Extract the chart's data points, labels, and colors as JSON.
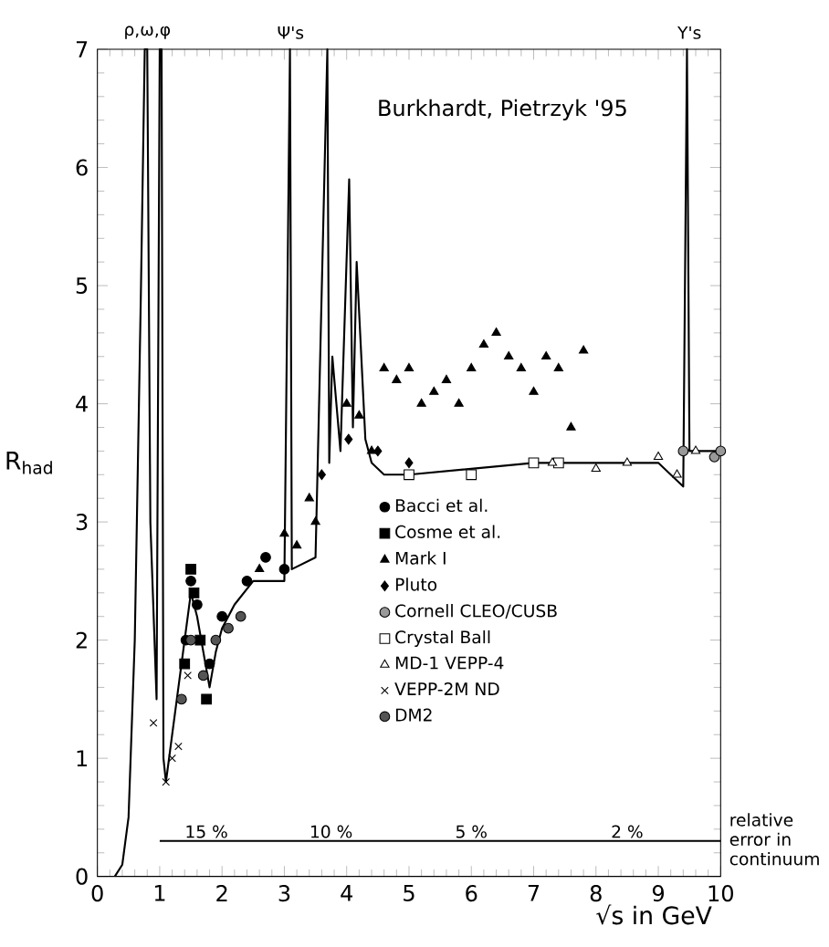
{
  "chart_data": {
    "type": "line",
    "title": "Burkhardt, Pietrzyk '95",
    "xlabel": "√s in GeV",
    "ylabel": "R$_{had}$",
    "xlim": [
      0,
      10
    ],
    "ylim": [
      0,
      7
    ],
    "xticks": [
      0,
      1,
      2,
      3,
      4,
      5,
      6,
      7,
      8,
      9,
      10
    ],
    "yticks": [
      0,
      1,
      2,
      3,
      4,
      5,
      6,
      7
    ],
    "grid": false,
    "legend": "center",
    "line_style": "solid",
    "annotations": [
      {
        "text": "ρ,ω,φ",
        "x": 0.8,
        "y": 7
      },
      {
        "text": "Ψ's",
        "x": 3.1,
        "y": 7
      },
      {
        "text": "Υ's",
        "x": 9.5,
        "y": 7
      },
      {
        "text": "15 %",
        "x": 1.75,
        "y": 0.3
      },
      {
        "text": "10 %",
        "x": 3.75,
        "y": 0.3
      },
      {
        "text": "5 %",
        "x": 6,
        "y": 0.3
      },
      {
        "text": "2 %",
        "x": 8.5,
        "y": 0.3
      },
      "relative error in continuum"
    ],
    "series": [
      {
        "color": "#000000",
        "marker": "none",
        "x": [
          0.28,
          0.4,
          0.5,
          0.6,
          0.7,
          0.76,
          0.8,
          0.85,
          0.95,
          1.0,
          1.03,
          1.06,
          1.1,
          1.2,
          1.4,
          1.5,
          1.6,
          1.8,
          1.9,
          2.0,
          2.2,
          2.5,
          3.0,
          3.09,
          3.12,
          3.5,
          3.69,
          3.72,
          3.77,
          3.9,
          4.04,
          4.1,
          4.16,
          4.3,
          4.4,
          4.6,
          5,
          6,
          7,
          8,
          9,
          9.4,
          9.46,
          9.5,
          10
        ],
        "values": [
          0,
          0.1,
          0.5,
          2,
          5,
          7,
          7,
          3,
          1.5,
          7,
          7,
          1.0,
          0.8,
          1.2,
          2.0,
          2.4,
          2.2,
          1.6,
          1.9,
          2.1,
          2.3,
          2.5,
          2.5,
          7,
          2.6,
          2.7,
          7,
          3.5,
          4.4,
          3.6,
          5.9,
          3.8,
          5.2,
          3.7,
          3.5,
          3.4,
          3.4,
          3.45,
          3.5,
          3.5,
          3.5,
          3.3,
          7,
          3.6,
          3.6
        ]
      },
      {
        "color": "#000000",
        "marker": "none",
        "x": [
          1,
          2.5,
          5,
          7,
          10
        ],
        "values": [
          0.3,
          0.3,
          0.3,
          0.3,
          0.3
        ]
      },
      {
        "type": "scatter",
        "name": "Bacci et al.",
        "color": "#000000",
        "marker": "circle",
        "x": [
          1.42,
          1.5,
          1.6,
          1.8,
          2.0,
          2.4,
          2.7,
          3.0
        ],
        "values": [
          2.0,
          2.5,
          2.3,
          1.8,
          2.2,
          2.5,
          2.7,
          2.6
        ]
      },
      {
        "type": "scatter",
        "name": "Cosme et al.",
        "color": "#000000",
        "marker": "square",
        "x": [
          1.4,
          1.5,
          1.55,
          1.65,
          1.75
        ],
        "values": [
          1.8,
          2.6,
          2.4,
          2.0,
          1.5
        ]
      },
      {
        "type": "scatter",
        "name": "Mark I",
        "color": "#000000",
        "marker": "triangle",
        "x": [
          2.6,
          3.0,
          3.2,
          3.4,
          3.5,
          4.0,
          4.2,
          4.4,
          4.6,
          4.8,
          5.0,
          5.2,
          5.4,
          5.6,
          5.8,
          6.0,
          6.2,
          6.4,
          6.6,
          6.8,
          7.0,
          7.2,
          7.4,
          7.6,
          7.8
        ],
        "values": [
          2.6,
          2.9,
          2.8,
          3.2,
          3.0,
          4.0,
          3.9,
          3.6,
          4.3,
          4.2,
          4.3,
          4.0,
          4.1,
          4.2,
          4.0,
          4.3,
          4.5,
          4.6,
          4.4,
          4.3,
          4.1,
          4.4,
          4.3,
          3.8,
          4.45
        ]
      },
      {
        "type": "scatter",
        "name": "Pluto",
        "color": "#000000",
        "marker": "diamond",
        "x": [
          3.6,
          4.03,
          4.5,
          5.0
        ],
        "values": [
          3.4,
          3.7,
          3.6,
          3.5
        ]
      },
      {
        "type": "scatter",
        "name": "Cornell CLEO/CUSB",
        "color": "#999999",
        "marker": "circle",
        "x": [
          9.4,
          9.9,
          10.0
        ],
        "values": [
          3.6,
          3.55,
          3.6
        ]
      },
      {
        "type": "scatter",
        "name": "Crystal Ball",
        "color": "#ffffff",
        "marker": "square",
        "x": [
          5.0,
          6.0,
          7.0,
          7.4
        ],
        "values": [
          3.4,
          3.4,
          3.5,
          3.5
        ]
      },
      {
        "type": "scatter",
        "name": "MD-1 VEPP-4",
        "color": "#ffffff",
        "marker": "triangle",
        "x": [
          7.3,
          8.0,
          8.5,
          9.0,
          9.3,
          9.6
        ],
        "values": [
          3.5,
          3.45,
          3.5,
          3.55,
          3.4,
          3.6
        ]
      },
      {
        "type": "scatter",
        "name": "VEPP-2M ND",
        "color": "#000000",
        "marker": "cross",
        "x": [
          0.9,
          1.1,
          1.2,
          1.3,
          1.45
        ],
        "values": [
          1.3,
          0.8,
          1.0,
          1.1,
          1.7
        ]
      },
      {
        "type": "scatter",
        "name": "DM2",
        "color": "#555555",
        "marker": "circle",
        "x": [
          1.35,
          1.5,
          1.7,
          1.9,
          2.1,
          2.3
        ],
        "values": [
          1.5,
          2.0,
          1.7,
          2.0,
          2.1,
          2.2
        ]
      }
    ]
  }
}
